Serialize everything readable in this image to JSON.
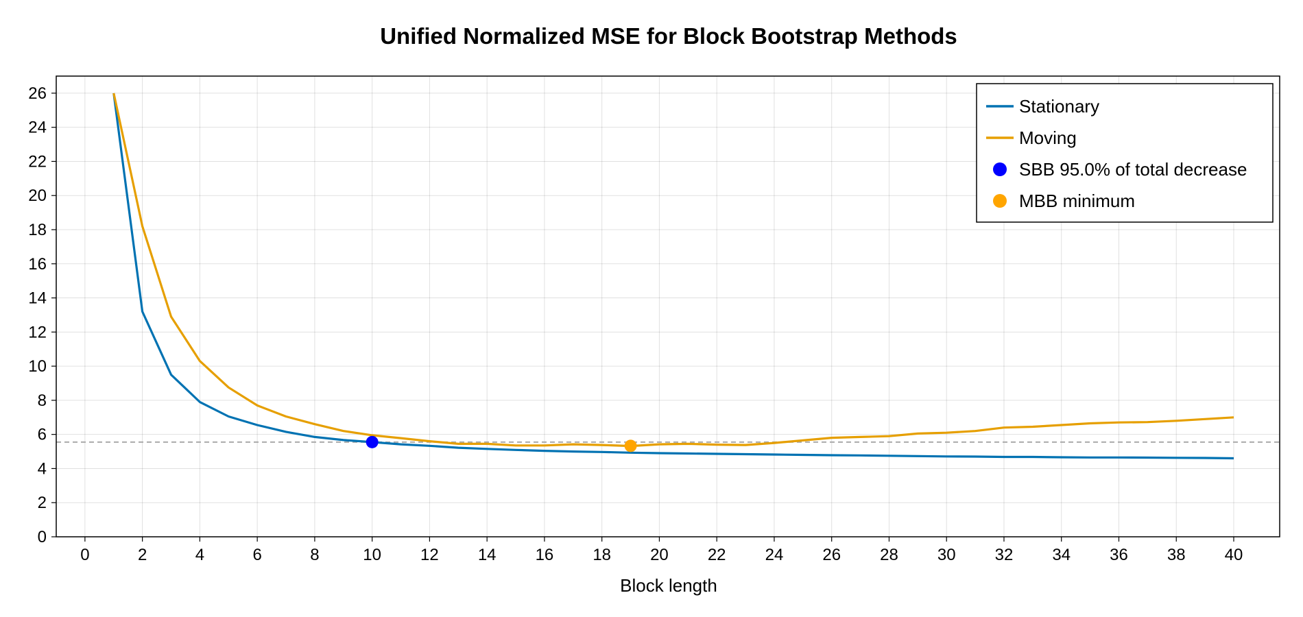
{
  "chart_data": {
    "type": "line",
    "title": "Unified Normalized MSE for Block Bootstrap Methods",
    "xlabel": "Block length",
    "ylabel": "",
    "xlim": [
      -1,
      41.6
    ],
    "ylim": [
      0,
      27
    ],
    "x_ticks": [
      0,
      2,
      4,
      6,
      8,
      10,
      12,
      14,
      16,
      18,
      20,
      22,
      24,
      26,
      28,
      30,
      32,
      34,
      36,
      38,
      40
    ],
    "y_ticks": [
      0,
      2,
      4,
      6,
      8,
      10,
      12,
      14,
      16,
      18,
      20,
      22,
      24,
      26
    ],
    "grid": true,
    "legend_position": "top-right",
    "reference_line": {
      "y": 5.55,
      "style": "dashed",
      "color": "#aaaaaa"
    },
    "series": [
      {
        "name": "Stationary",
        "color": "#0072b2",
        "x": [
          1,
          2,
          3,
          4,
          5,
          6,
          7,
          8,
          9,
          10,
          11,
          12,
          13,
          14,
          15,
          16,
          17,
          18,
          19,
          20,
          21,
          22,
          23,
          24,
          25,
          26,
          27,
          28,
          29,
          30,
          31,
          32,
          33,
          34,
          35,
          36,
          37,
          38,
          39,
          40
        ],
        "y": [
          26.0,
          13.2,
          9.5,
          7.9,
          7.05,
          6.55,
          6.15,
          5.85,
          5.67,
          5.55,
          5.42,
          5.33,
          5.22,
          5.15,
          5.09,
          5.04,
          5.0,
          4.97,
          4.93,
          4.9,
          4.88,
          4.86,
          4.84,
          4.82,
          4.8,
          4.78,
          4.77,
          4.75,
          4.73,
          4.71,
          4.7,
          4.68,
          4.68,
          4.66,
          4.65,
          4.65,
          4.64,
          4.63,
          4.62,
          4.6
        ]
      },
      {
        "name": "Moving",
        "color": "#e69f00",
        "x": [
          1,
          2,
          3,
          4,
          5,
          6,
          7,
          8,
          9,
          10,
          11,
          12,
          13,
          14,
          15,
          16,
          17,
          18,
          19,
          20,
          21,
          22,
          23,
          24,
          25,
          26,
          27,
          28,
          29,
          30,
          31,
          32,
          33,
          34,
          35,
          36,
          37,
          38,
          39,
          40
        ],
        "y": [
          26.0,
          18.2,
          12.9,
          10.3,
          8.75,
          7.7,
          7.05,
          6.6,
          6.2,
          5.95,
          5.78,
          5.6,
          5.45,
          5.45,
          5.35,
          5.35,
          5.42,
          5.38,
          5.32,
          5.42,
          5.45,
          5.4,
          5.38,
          5.5,
          5.65,
          5.8,
          5.85,
          5.9,
          6.05,
          6.1,
          6.2,
          6.4,
          6.45,
          6.55,
          6.65,
          6.7,
          6.72,
          6.8,
          6.9,
          7.0
        ]
      }
    ],
    "markers": [
      {
        "name": "SBB 95.0% of total decrease",
        "x": 10,
        "y": 5.55,
        "color": "#0000ff"
      },
      {
        "name": "MBB minimum",
        "x": 19,
        "y": 5.33,
        "color": "#ffa500"
      }
    ]
  }
}
